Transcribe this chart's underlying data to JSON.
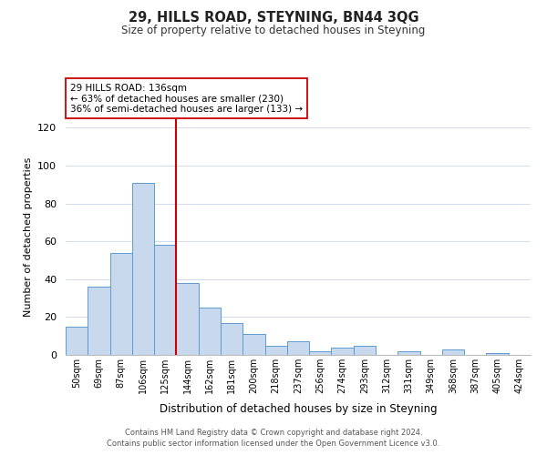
{
  "title": "29, HILLS ROAD, STEYNING, BN44 3QG",
  "subtitle": "Size of property relative to detached houses in Steyning",
  "xlabel": "Distribution of detached houses by size in Steyning",
  "ylabel": "Number of detached properties",
  "bin_labels": [
    "50sqm",
    "69sqm",
    "87sqm",
    "106sqm",
    "125sqm",
    "144sqm",
    "162sqm",
    "181sqm",
    "200sqm",
    "218sqm",
    "237sqm",
    "256sqm",
    "274sqm",
    "293sqm",
    "312sqm",
    "331sqm",
    "349sqm",
    "368sqm",
    "387sqm",
    "405sqm",
    "424sqm"
  ],
  "bar_heights": [
    15,
    36,
    54,
    91,
    58,
    38,
    25,
    17,
    11,
    5,
    7,
    2,
    4,
    5,
    0,
    2,
    0,
    3,
    0,
    1,
    0
  ],
  "bar_color": "#c8d9ed",
  "bar_edge_color": "#5b9bd5",
  "vline_color": "#cc0000",
  "vline_bar_index": 4,
  "annotation_title": "29 HILLS ROAD: 136sqm",
  "annotation_line1": "← 63% of detached houses are smaller (230)",
  "annotation_line2": "36% of semi-detached houses are larger (133) →",
  "annotation_box_color": "#ffffff",
  "annotation_box_edge": "#cc0000",
  "ylim": [
    0,
    125
  ],
  "yticks": [
    0,
    20,
    40,
    60,
    80,
    100,
    120
  ],
  "grid_color": "#d0dcec",
  "footnote1": "Contains HM Land Registry data © Crown copyright and database right 2024.",
  "footnote2": "Contains public sector information licensed under the Open Government Licence v3.0."
}
